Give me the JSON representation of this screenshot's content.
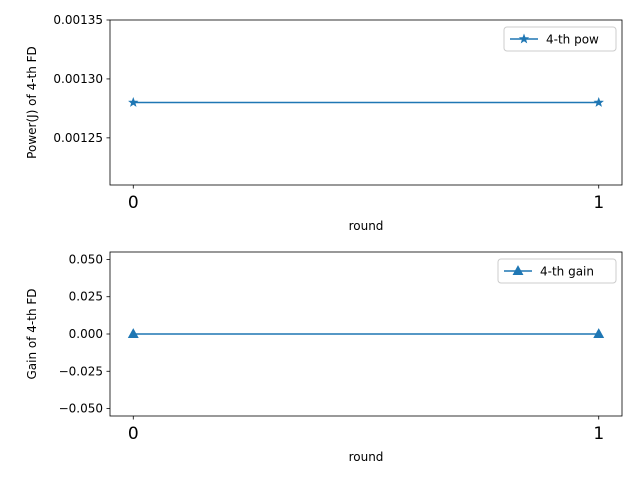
{
  "chart_data": [
    {
      "type": "line",
      "xlabel": "round",
      "ylabel": "Power(J) of 4-th FD",
      "x": [
        0,
        1
      ],
      "x_ticks": [
        "0",
        "1"
      ],
      "xlim": [
        -0.05,
        1.05
      ],
      "ylim": [
        0.00121,
        0.00135
      ],
      "y_ticks": [
        "0.00125",
        "0.00130",
        "0.00135"
      ],
      "y_tick_values": [
        0.00125,
        0.0013,
        0.00135
      ],
      "series": [
        {
          "name": "4-th pow",
          "values": [
            0.00128,
            0.00128
          ],
          "marker": "star",
          "color": "#1f77b4"
        }
      ],
      "legend": "top-right",
      "grid": false
    },
    {
      "type": "line",
      "xlabel": "round",
      "ylabel": "Gain of 4-th FD",
      "x": [
        0,
        1
      ],
      "x_ticks": [
        "0",
        "1"
      ],
      "xlim": [
        -0.05,
        1.05
      ],
      "ylim": [
        -0.055,
        0.055
      ],
      "y_ticks": [
        "0.050",
        "0.025",
        "0.000",
        "−0.025",
        "−0.050"
      ],
      "y_tick_values": [
        0.05,
        0.025,
        0.0,
        -0.025,
        -0.05
      ],
      "series": [
        {
          "name": "4-th gain",
          "values": [
            0,
            0
          ],
          "marker": "triangle",
          "color": "#1f77b4"
        }
      ],
      "legend": "top-right",
      "grid": false
    }
  ]
}
